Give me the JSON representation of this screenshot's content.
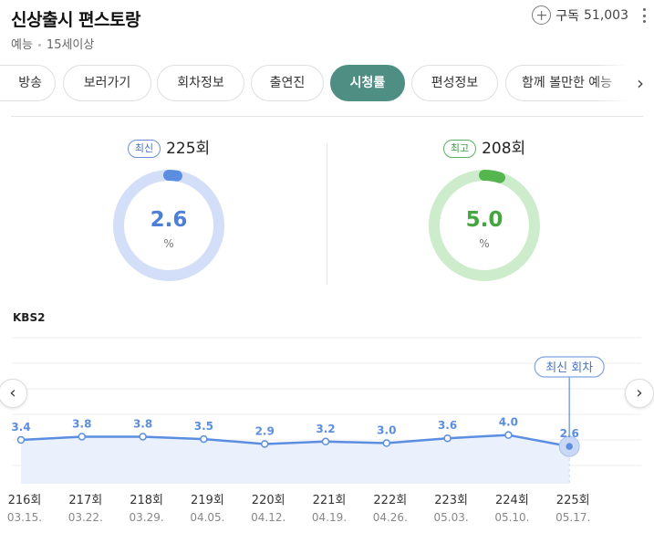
{
  "program": {
    "title": "신상출시 편스토랑",
    "genre": "예능",
    "age_rating": "15세이상",
    "subscribe_label": "구독",
    "subscribe_count": "51,003"
  },
  "tabs": [
    {
      "label": "방송",
      "active": false
    },
    {
      "label": "보러가기",
      "active": false
    },
    {
      "label": "회차정보",
      "active": false
    },
    {
      "label": "출연진",
      "active": false
    },
    {
      "label": "시청률",
      "active": true
    },
    {
      "label": "편성정보",
      "active": false
    },
    {
      "label": "함께 볼만한 예능",
      "active": false
    }
  ],
  "latest": {
    "badge": "최신",
    "episode": "225회",
    "value": 2.6,
    "value_text": "2.6",
    "unit": "%",
    "color": "#5b8ee0",
    "track_color": "#d3dff8"
  },
  "best": {
    "badge": "최고",
    "episode": "208회",
    "value": 5.0,
    "value_text": "5.0",
    "unit": "%",
    "color": "#55b650",
    "track_color": "#cdeccb"
  },
  "chart_data": {
    "type": "line",
    "title": "",
    "channel": "KBS2",
    "categories": [
      "216회",
      "217회",
      "218회",
      "219회",
      "220회",
      "221회",
      "222회",
      "223회",
      "224회",
      "225회"
    ],
    "dates": [
      "03.15.",
      "03.22.",
      "03.29.",
      "04.05.",
      "04.12.",
      "04.19.",
      "04.26.",
      "05.03.",
      "05.10.",
      "05.17."
    ],
    "values": [
      3.4,
      3.8,
      3.8,
      3.5,
      2.9,
      3.2,
      3.0,
      3.6,
      4.0,
      2.6
    ],
    "series": [
      {
        "name": "시청률",
        "values": [
          3.4,
          3.8,
          3.8,
          3.5,
          2.9,
          3.2,
          3.0,
          3.6,
          4.0,
          2.6
        ]
      }
    ],
    "ylim": [
      -2,
      16
    ],
    "xlabel": "",
    "ylabel": "",
    "latest_marker_label": "최신 회차",
    "line_color": "#5b8ee0",
    "fill_color": "#eaf1fd"
  }
}
